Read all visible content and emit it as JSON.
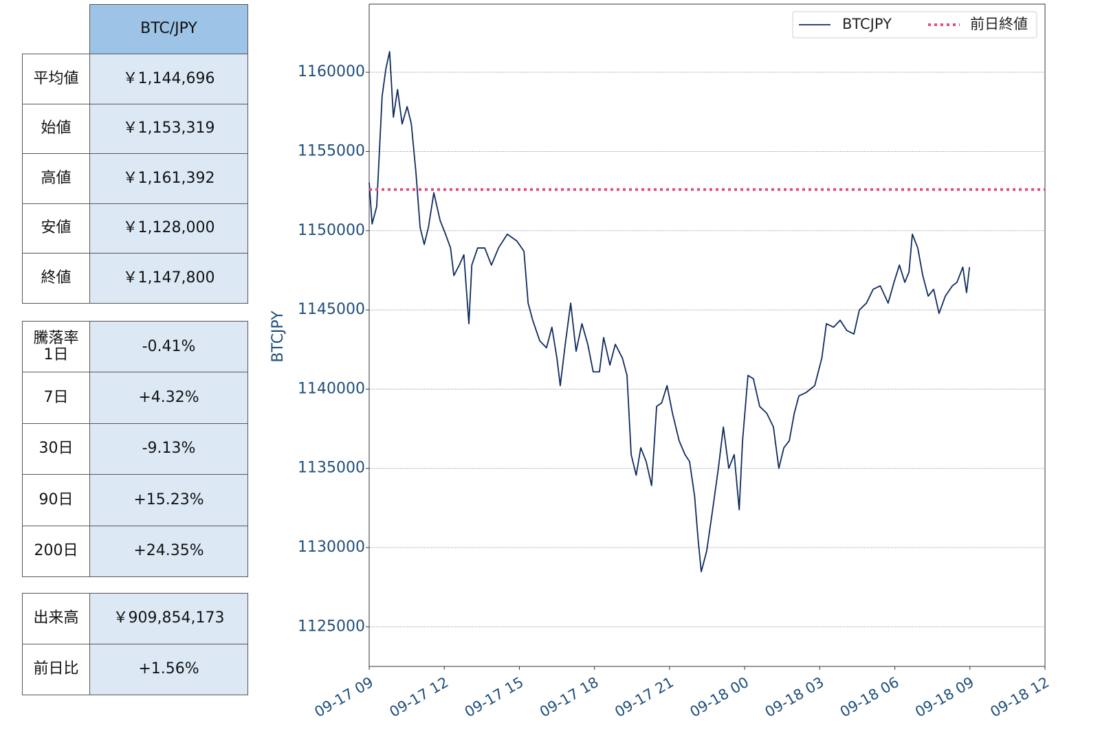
{
  "tables": [
    {
      "header": "BTC/JPY",
      "rows": [
        [
          "平均値",
          "￥1,144,696"
        ],
        [
          "始値",
          "￥1,153,319"
        ],
        [
          "高値",
          "￥1,161,392"
        ],
        [
          "安値",
          "￥1,128,000"
        ],
        [
          "終値",
          "￥1,147,800"
        ]
      ]
    },
    {
      "rows": [
        [
          "騰落率\n1日",
          "-0.41%"
        ],
        [
          "7日",
          "+4.32%"
        ],
        [
          "30日",
          "-9.13%"
        ],
        [
          "90日",
          "+15.23%"
        ],
        [
          "200日",
          "+24.35%"
        ]
      ]
    },
    {
      "rows": [
        [
          "出来高",
          "￥909,854,173"
        ],
        [
          "前日比",
          "+1.56%"
        ]
      ]
    }
  ],
  "chart_data": {
    "type": "line",
    "ylabel": "BTCJPY",
    "legend": "upper right",
    "grid": true,
    "x": [
      "09-17 09:00",
      "09-17 09:07",
      "09-17 09:18",
      "09-17 09:31",
      "09-17 09:40",
      "09-17 09:49",
      "09-17 09:58",
      "09-17 10:08",
      "09-17 10:19",
      "09-17 10:31",
      "09-17 10:41",
      "09-17 10:52",
      "09-17 11:02",
      "09-17 11:12",
      "09-17 11:22",
      "09-17 11:35",
      "09-17 11:50",
      "09-17 12:03",
      "09-17 12:15",
      "09-17 12:23",
      "09-17 12:36",
      "09-17 12:47",
      "09-17 12:59",
      "09-17 13:06",
      "09-17 13:20",
      "09-17 13:37",
      "09-17 13:53",
      "09-17 14:10",
      "09-17 14:31",
      "09-17 14:54",
      "09-17 15:11",
      "09-17 15:21",
      "09-17 15:32",
      "09-17 15:49",
      "09-17 16:05",
      "09-17 16:18",
      "09-17 16:30",
      "09-17 16:38",
      "09-17 16:50",
      "09-17 17:03",
      "09-17 17:16",
      "09-17 17:30",
      "09-17 17:44",
      "09-17 17:57",
      "09-17 18:12",
      "09-17 18:22",
      "09-17 18:37",
      "09-17 18:50",
      "09-17 19:07",
      "09-17 19:18",
      "09-17 19:28",
      "09-17 19:40",
      "09-17 19:51",
      "09-17 20:04",
      "09-17 20:17",
      "09-17 20:29",
      "09-17 20:41",
      "09-17 20:54",
      "09-17 21:07",
      "09-17 21:23",
      "09-17 21:37",
      "09-17 21:48",
      "09-17 22:00",
      "09-17 22:08",
      "09-17 22:16",
      "09-17 22:29",
      "09-17 22:41",
      "09-17 22:57",
      "09-17 23:09",
      "09-17 23:22",
      "09-17 23:35",
      "09-17 23:47",
      "09-17 23:55",
      "09-18 00:08",
      "09-18 00:21",
      "09-18 00:36",
      "09-18 00:53",
      "09-18 01:09",
      "09-18 01:22",
      "09-18 01:34",
      "09-18 01:47",
      "09-18 01:59",
      "09-18 02:10",
      "09-18 02:27",
      "09-18 02:48",
      "09-18 03:05",
      "09-18 03:16",
      "09-18 03:33",
      "09-18 03:49",
      "09-18 04:05",
      "09-18 04:22",
      "09-18 04:35",
      "09-18 04:52",
      "09-18 05:08",
      "09-18 05:25",
      "09-18 05:44",
      "09-18 05:58",
      "09-18 06:11",
      "09-18 06:24",
      "09-18 06:34",
      "09-18 06:42",
      "09-18 06:55",
      "09-18 07:07",
      "09-18 07:20",
      "09-18 07:33",
      "09-18 07:46",
      "09-18 08:01",
      "09-18 08:18",
      "09-18 08:29",
      "09-18 08:43",
      "09-18 08:52",
      "09-18 08:59"
    ],
    "series": [
      {
        "name": "BTCJPY",
        "color": "#0d2a5e",
        "values": [
          1153040,
          1150430,
          1151520,
          1158480,
          1160220,
          1161300,
          1157170,
          1158910,
          1156740,
          1157830,
          1156740,
          1153700,
          1150220,
          1149130,
          1150220,
          1152390,
          1150650,
          1149780,
          1148910,
          1147170,
          1147830,
          1148480,
          1144130,
          1147830,
          1148910,
          1148910,
          1147830,
          1148910,
          1149780,
          1149350,
          1148700,
          1145430,
          1144350,
          1143040,
          1142610,
          1143910,
          1141960,
          1140220,
          1142830,
          1145430,
          1142390,
          1144130,
          1142830,
          1141090,
          1141090,
          1143260,
          1141520,
          1142830,
          1141960,
          1140870,
          1135870,
          1134570,
          1136300,
          1135430,
          1133910,
          1138910,
          1139130,
          1140220,
          1138480,
          1136740,
          1135870,
          1135430,
          1133260,
          1130650,
          1128480,
          1129780,
          1131960,
          1135000,
          1137610,
          1135000,
          1135870,
          1132390,
          1136740,
          1140870,
          1140650,
          1138910,
          1138480,
          1137610,
          1135000,
          1136300,
          1136740,
          1138480,
          1139570,
          1139780,
          1140220,
          1141960,
          1144130,
          1143910,
          1144350,
          1143700,
          1143480,
          1145000,
          1145430,
          1146300,
          1146520,
          1145430,
          1146740,
          1147830,
          1146740,
          1147390,
          1149780,
          1148910,
          1147170,
          1145870,
          1146300,
          1144780,
          1145870,
          1146520,
          1146740,
          1147700,
          1146090,
          1147700
        ]
      }
    ],
    "reference_line": {
      "name": "前日終値",
      "value": 1152600,
      "color": "#e0507a"
    },
    "xlim": [
      "09-17 09",
      "09-18 12"
    ],
    "xticks": [
      "09-17 09",
      "09-17 12",
      "09-17 15",
      "09-17 18",
      "09-17 21",
      "09-18 00",
      "09-18 03",
      "09-18 06",
      "09-18 09",
      "09-18 12"
    ],
    "ylim": [
      1122500,
      1164300
    ],
    "yticks": [
      1125000,
      1130000,
      1135000,
      1140000,
      1145000,
      1150000,
      1155000,
      1160000
    ]
  }
}
